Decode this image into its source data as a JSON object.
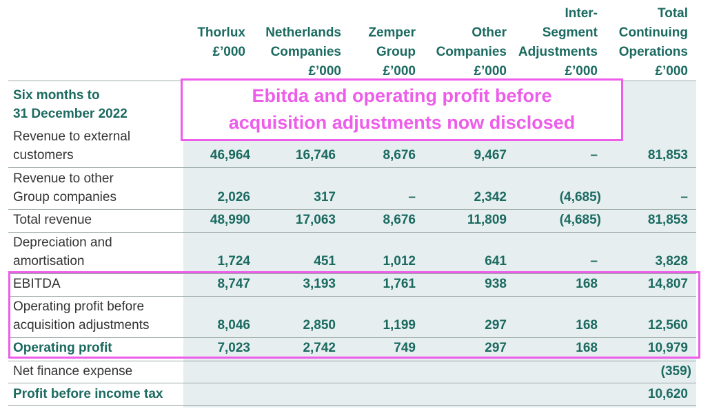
{
  "columns": [
    {
      "line1": "",
      "line2": "",
      "line3": "Thorlux",
      "unit": "£’000"
    },
    {
      "line1": "",
      "line2": "Netherlands",
      "line3": "Companies",
      "unit": "£’000"
    },
    {
      "line1": "",
      "line2": "Zemper",
      "line3": "Group",
      "unit": "£’000"
    },
    {
      "line1": "",
      "line2": "Other",
      "line3": "Companies",
      "unit": "£’000"
    },
    {
      "line1": "Inter-",
      "line2": "Segment",
      "line3": "Adjustments",
      "unit": "£’000"
    },
    {
      "line1": "Total",
      "line2": "Continuing",
      "line3": "Operations",
      "unit": "£’000"
    }
  ],
  "period_label": [
    "Six months to",
    "31 December 2022"
  ],
  "rows": [
    {
      "label": [
        "Revenue to external",
        "customers"
      ],
      "values": [
        "46,964",
        "16,746",
        "8,676",
        "9,467",
        "–",
        "81,853"
      ]
    },
    {
      "label": [
        "Revenue to other",
        "Group companies"
      ],
      "values": [
        "2,026",
        "317",
        "–",
        "2,342",
        "(4,685)",
        "–"
      ]
    },
    {
      "label": [
        "Total revenue"
      ],
      "values": [
        "48,990",
        "17,063",
        "8,676",
        "11,809",
        "(4,685)",
        "81,853"
      ]
    },
    {
      "label": [
        "Depreciation and",
        "amortisation"
      ],
      "values": [
        "1,724",
        "451",
        "1,012",
        "641",
        "–",
        "3,828"
      ]
    },
    {
      "label": [
        "EBITDA"
      ],
      "values": [
        "8,747",
        "3,193",
        "1,761",
        "938",
        "168",
        "14,807"
      ]
    },
    {
      "label": [
        "Operating profit before",
        "acquisition adjustments"
      ],
      "values": [
        "8,046",
        "2,850",
        "1,199",
        "297",
        "168",
        "12,560"
      ]
    },
    {
      "label": [
        "Operating profit"
      ],
      "values": [
        "7,023",
        "2,742",
        "749",
        "297",
        "168",
        "10,979"
      ]
    },
    {
      "label": [
        "Net finance expense"
      ],
      "values": [
        "",
        "",
        "",
        "",
        "",
        "(359)"
      ]
    },
    {
      "label": [
        "Profit before income tax"
      ],
      "values": [
        "",
        "",
        "",
        "",
        "",
        "10,620"
      ]
    }
  ],
  "annotation": {
    "line1": "Ebitda and operating profit before",
    "line2": "acquisition adjustments now disclosed"
  },
  "colors": {
    "accent_green": "#1b6a60",
    "highlight_magenta": "#ee5cea",
    "shade": "#e6eef0"
  }
}
